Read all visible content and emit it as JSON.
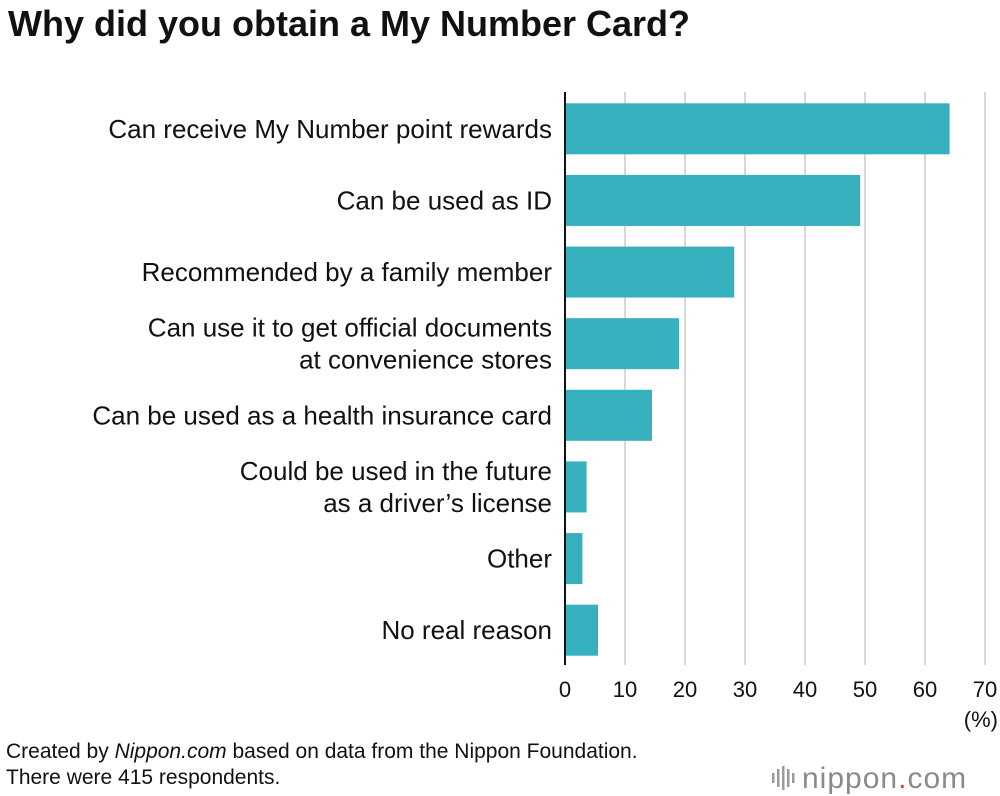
{
  "chart_data": {
    "type": "bar",
    "orientation": "horizontal",
    "title": "Why did you obtain a My Number Card?",
    "categories": [
      [
        "Can receive My Number point rewards"
      ],
      [
        "Can be used as ID"
      ],
      [
        "Recommended by a family member"
      ],
      [
        "Can use it to get official documents",
        "at convenience stores"
      ],
      [
        "Can be used as a health insurance card"
      ],
      [
        "Could be used in the future",
        "as a driver’s license"
      ],
      [
        "Other"
      ],
      [
        "No real reason"
      ]
    ],
    "values": [
      64.1,
      49.2,
      28.2,
      19.0,
      14.5,
      3.6,
      2.9,
      5.5
    ],
    "xlim": [
      0,
      70
    ],
    "xticks": [
      0,
      10,
      20,
      30,
      40,
      50,
      60,
      70
    ],
    "unit_label": "(%)",
    "bar_color": "#37b0be",
    "grid": true,
    "grid_color": "#cccccc"
  },
  "footer": {
    "source_prefix": "Created by ",
    "source_site": "Nippon.com",
    "source_suffix": " based on data from the Nippon Foundation.",
    "respondents": "There were 415 respondents."
  },
  "logo": {
    "text_before_dot": "nippon",
    "dot": ".",
    "text_after_dot": "com",
    "icon": "sound-bars-icon"
  }
}
